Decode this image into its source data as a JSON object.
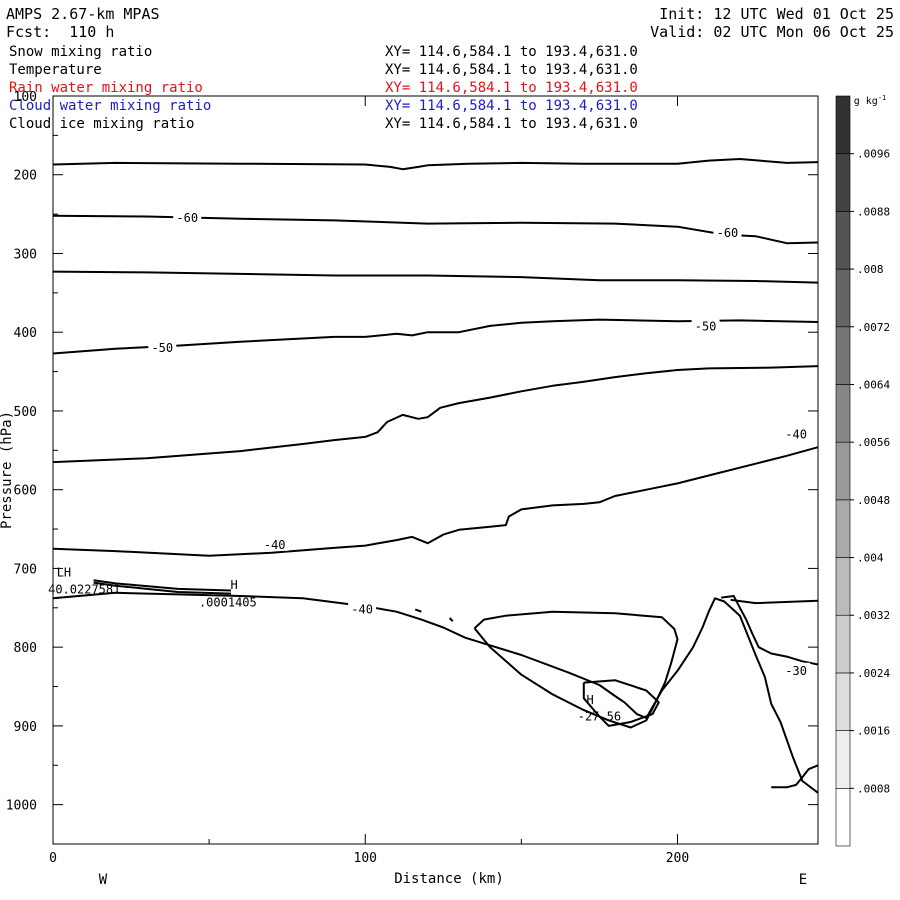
{
  "header": {
    "model": "AMPS 2.67-km MPAS",
    "fcst_label": "Fcst:",
    "fcst_value": "110 h",
    "init": "Init: 12 UTC Wed 01 Oct 25",
    "valid": "Valid: 02 UTC Mon 06 Oct 25"
  },
  "fields": [
    {
      "name": "Snow mixing ratio",
      "xy": "XY= 114.6,584.1 to 193.4,631.0",
      "color": "#000000"
    },
    {
      "name": "Temperature",
      "xy": "XY= 114.6,584.1 to 193.4,631.0",
      "color": "#000000"
    },
    {
      "name": "Rain water mixing ratio",
      "xy": "XY= 114.6,584.1 to 193.4,631.0",
      "color": "#e8111b"
    },
    {
      "name": "Cloud water mixing ratio",
      "xy": "XY= 114.6,584.1 to 193.4,631.0",
      "color": "#1c1cd0"
    },
    {
      "name": "Cloud ice mixing ratio",
      "xy": "XY= 114.6,584.1 to 193.4,631.0",
      "color": "#000000"
    }
  ],
  "chart_data": {
    "type": "contour_cross_section",
    "xlabel": "Distance (km)",
    "ylabel": "Pressure (hPa)",
    "xlim": [
      0,
      245
    ],
    "ylim": [
      1050,
      100
    ],
    "x_ticks": [
      0,
      100,
      200
    ],
    "y_ticks": [
      100,
      200,
      300,
      400,
      500,
      600,
      700,
      800,
      900,
      1000
    ],
    "west_label": "W",
    "east_label": "E",
    "colorbar": {
      "unit": "g kg",
      "unit_exp": "-1",
      "levels": [
        ".0008",
        ".0016",
        ".0024",
        ".0032",
        ".004",
        ".0048",
        ".0056",
        ".0064",
        ".0072",
        ".008",
        ".0088",
        ".0096"
      ]
    },
    "contour_labels": [
      {
        "text": "-60",
        "x": 43,
        "p": 255
      },
      {
        "text": "-60",
        "x": 216,
        "p": 274
      },
      {
        "text": "-50",
        "x": 35,
        "p": 420
      },
      {
        "text": "-50",
        "x": 209,
        "p": 393
      },
      {
        "text": "-40",
        "x": 71,
        "p": 670
      },
      {
        "text": "-40",
        "x": 99,
        "p": 752
      },
      {
        "text": "-40",
        "x": 238,
        "p": 530
      },
      {
        "text": "-30",
        "x": 238,
        "p": 830
      }
    ],
    "extrema_labels": [
      {
        "text": "LH",
        "x": 3.5,
        "p": 705
      },
      {
        "text": "40.0227581",
        "x": 10,
        "p": 727
      },
      {
        "text": "H",
        "x": 58,
        "p": 721
      },
      {
        "text": ".0001405",
        "x": 56,
        "p": 743
      },
      {
        "text": "H",
        "x": 172,
        "p": 867
      },
      {
        "text": "-27.56",
        "x": 175,
        "p": 888
      }
    ],
    "isotherms": [
      {
        "points": [
          [
            0,
            187
          ],
          [
            20,
            185
          ],
          [
            60,
            186
          ],
          [
            100,
            187
          ],
          [
            108,
            190
          ],
          [
            112,
            193
          ],
          [
            117,
            190
          ],
          [
            120,
            188
          ],
          [
            133,
            186
          ],
          [
            150,
            185
          ],
          [
            170,
            186
          ],
          [
            190,
            186
          ],
          [
            200,
            186
          ],
          [
            210,
            182
          ],
          [
            220,
            180
          ],
          [
            235,
            185
          ],
          [
            245,
            184
          ]
        ]
      },
      {
        "points": [
          [
            0,
            252
          ],
          [
            30,
            253
          ],
          [
            60,
            256
          ],
          [
            90,
            258
          ],
          [
            120,
            262
          ],
          [
            150,
            261
          ],
          [
            180,
            262
          ],
          [
            200,
            266
          ],
          [
            215,
            276
          ],
          [
            225,
            278
          ],
          [
            235,
            287
          ],
          [
            245,
            286
          ]
        ]
      },
      {
        "points": [
          [
            0,
            323
          ],
          [
            30,
            324
          ],
          [
            60,
            326
          ],
          [
            90,
            328
          ],
          [
            120,
            328
          ],
          [
            150,
            330
          ],
          [
            175,
            334
          ],
          [
            200,
            334
          ],
          [
            225,
            335
          ],
          [
            245,
            337
          ]
        ]
      },
      {
        "points": [
          [
            0,
            427
          ],
          [
            20,
            421
          ],
          [
            40,
            417
          ],
          [
            60,
            412
          ],
          [
            90,
            406
          ],
          [
            100,
            406
          ],
          [
            110,
            402
          ],
          [
            115,
            404
          ],
          [
            120,
            400
          ],
          [
            130,
            400
          ],
          [
            140,
            392
          ],
          [
            150,
            388
          ],
          [
            160,
            386
          ],
          [
            175,
            384
          ],
          [
            200,
            386
          ],
          [
            220,
            385
          ],
          [
            245,
            387
          ]
        ]
      },
      {
        "points": [
          [
            0,
            565
          ],
          [
            30,
            560
          ],
          [
            60,
            551
          ],
          [
            80,
            542
          ],
          [
            90,
            537
          ],
          [
            100,
            533
          ],
          [
            104,
            527
          ],
          [
            107,
            514
          ],
          [
            112,
            505
          ],
          [
            117,
            510
          ],
          [
            120,
            508
          ],
          [
            124,
            496
          ],
          [
            130,
            490
          ],
          [
            140,
            483
          ],
          [
            150,
            475
          ],
          [
            160,
            468
          ],
          [
            170,
            463
          ],
          [
            180,
            457
          ],
          [
            190,
            452
          ],
          [
            200,
            448
          ],
          [
            210,
            446
          ],
          [
            230,
            445
          ],
          [
            245,
            443
          ]
        ]
      },
      {
        "points": [
          [
            0,
            675
          ],
          [
            20,
            678
          ],
          [
            50,
            684
          ],
          [
            70,
            680
          ],
          [
            90,
            674
          ],
          [
            100,
            671
          ],
          [
            110,
            664
          ],
          [
            115,
            660
          ],
          [
            120,
            668
          ],
          [
            125,
            657
          ],
          [
            130,
            651
          ],
          [
            140,
            647
          ],
          [
            145,
            645
          ],
          [
            146,
            634
          ],
          [
            150,
            625
          ],
          [
            160,
            620
          ],
          [
            170,
            618
          ],
          [
            175,
            616
          ],
          [
            180,
            608
          ],
          [
            190,
            600
          ],
          [
            200,
            592
          ],
          [
            210,
            582
          ],
          [
            225,
            567
          ],
          [
            235,
            557
          ],
          [
            245,
            546
          ]
        ]
      },
      {
        "points": [
          [
            0,
            738
          ],
          [
            20,
            731
          ],
          [
            40,
            733
          ],
          [
            60,
            735
          ],
          [
            80,
            738
          ],
          [
            100,
            748
          ],
          [
            110,
            755
          ],
          [
            118,
            765
          ],
          [
            125,
            775
          ],
          [
            132,
            788
          ],
          [
            150,
            810
          ],
          [
            165,
            832
          ],
          [
            175,
            848
          ],
          [
            180,
            862
          ],
          [
            183,
            870
          ],
          [
            187,
            885
          ],
          [
            190,
            890
          ],
          [
            195,
            855
          ],
          [
            200,
            830
          ],
          [
            205,
            800
          ],
          [
            208,
            775
          ],
          [
            210,
            755
          ],
          [
            212,
            738
          ],
          [
            215,
            742
          ],
          [
            220,
            760
          ],
          [
            225,
            810
          ],
          [
            228,
            838
          ],
          [
            230,
            872
          ],
          [
            233,
            895
          ],
          [
            237,
            940
          ],
          [
            240,
            970
          ],
          [
            245,
            985
          ]
        ]
      },
      {
        "points": [
          [
            135,
            776
          ],
          [
            138,
            765
          ],
          [
            145,
            760
          ],
          [
            160,
            755
          ],
          [
            180,
            757
          ],
          [
            195,
            762
          ],
          [
            199,
            777
          ],
          [
            200,
            790
          ],
          [
            198,
            820
          ],
          [
            196,
            845
          ],
          [
            193,
            870
          ],
          [
            190,
            893
          ],
          [
            185,
            902
          ],
          [
            178,
            893
          ],
          [
            170,
            880
          ],
          [
            160,
            860
          ],
          [
            150,
            835
          ],
          [
            140,
            800
          ],
          [
            135,
            776
          ]
        ]
      },
      {
        "points": [
          [
            170,
            845
          ],
          [
            180,
            842
          ],
          [
            190,
            855
          ],
          [
            194,
            870
          ],
          [
            192,
            885
          ],
          [
            185,
            895
          ],
          [
            178,
            900
          ],
          [
            175,
            888
          ],
          [
            170,
            865
          ],
          [
            170,
            845
          ]
        ]
      },
      {
        "points": [
          [
            214,
            737
          ],
          [
            218,
            735
          ],
          [
            220,
            750
          ],
          [
            222,
            765
          ],
          [
            224,
            783
          ],
          [
            226,
            800
          ],
          [
            230,
            808
          ],
          [
            235,
            812
          ],
          [
            240,
            818
          ],
          [
            245,
            822
          ]
        ]
      },
      {
        "points": [
          [
            217,
            740
          ],
          [
            225,
            744
          ],
          [
            245,
            741
          ]
        ]
      },
      {
        "points": [
          [
            245,
            950
          ],
          [
            242,
            955
          ],
          [
            240,
            965
          ],
          [
            238,
            975
          ],
          [
            235,
            978
          ],
          [
            230,
            978
          ]
        ]
      },
      {
        "points": [
          [
            13,
            718
          ],
          [
            20,
            722
          ],
          [
            40,
            730
          ],
          [
            57,
            732
          ]
        ]
      },
      {
        "points": [
          [
            13,
            715
          ],
          [
            20,
            719
          ],
          [
            40,
            726
          ],
          [
            57,
            728
          ]
        ]
      },
      {
        "points": [
          [
            116,
            752
          ],
          [
            118,
            755
          ]
        ]
      },
      {
        "points": [
          [
            127,
            763
          ],
          [
            128,
            767
          ]
        ]
      }
    ]
  }
}
